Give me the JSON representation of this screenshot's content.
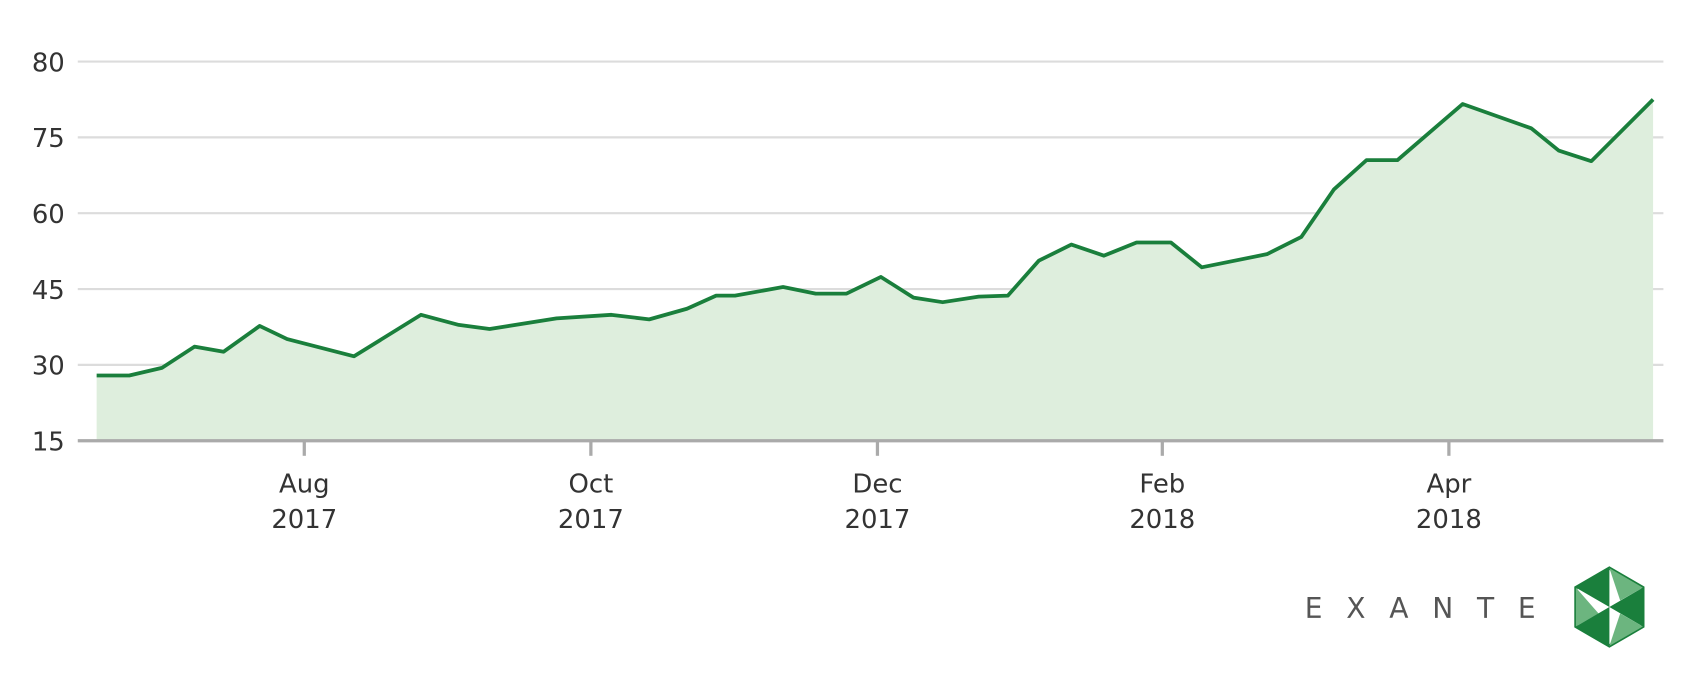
{
  "chart_data": {
    "type": "area",
    "x": [
      2017.462,
      2017.481,
      2017.5,
      2017.519,
      2017.536,
      2017.557,
      2017.573,
      2017.612,
      2017.651,
      2017.673,
      2017.691,
      2017.73,
      2017.762,
      2017.784,
      2017.806,
      2017.823,
      2017.834,
      2017.862,
      2017.881,
      2017.899,
      2017.919,
      2017.938,
      2017.955,
      2017.976,
      2017.993,
      2018.011,
      2018.03,
      2018.049,
      2018.068,
      2018.088,
      2018.106,
      2018.144,
      2018.164,
      2018.183,
      2018.202,
      2018.22,
      2018.258,
      2018.298,
      2018.314,
      2018.333,
      2018.369
    ],
    "values": [
      27.9,
      27.9,
      29.4,
      33.6,
      32.6,
      37.7,
      35.1,
      31.7,
      39.9,
      37.9,
      37.1,
      39.2,
      39.9,
      39.0,
      41.1,
      43.7,
      43.7,
      45.4,
      44.1,
      44.1,
      47.4,
      43.3,
      42.4,
      43.5,
      43.7,
      50.6,
      53.8,
      51.6,
      54.2,
      54.2,
      49.3,
      51.9,
      55.3,
      64.7,
      70.5,
      70.5,
      77.2,
      75.6,
      72.4,
      70.3,
      77.5
    ],
    "color": "#1a7f3c",
    "fill_color": "#deeedd",
    "xlim": [
      2017.451,
      2018.375
    ],
    "xticks": [
      {
        "value": 2017.583,
        "label": "Aug 2017"
      },
      {
        "value": 2017.75,
        "label": "Oct 2017"
      },
      {
        "value": 2017.917,
        "label": "Dec 2017"
      },
      {
        "value": 2018.083,
        "label": "Feb 2018"
      },
      {
        "value": 2018.25,
        "label": "Apr 2018"
      }
    ],
    "ylim": [
      15,
      80
    ],
    "yticks": [
      15,
      30,
      45,
      60,
      75,
      80
    ],
    "grid": true,
    "brand": "EXANTE"
  }
}
